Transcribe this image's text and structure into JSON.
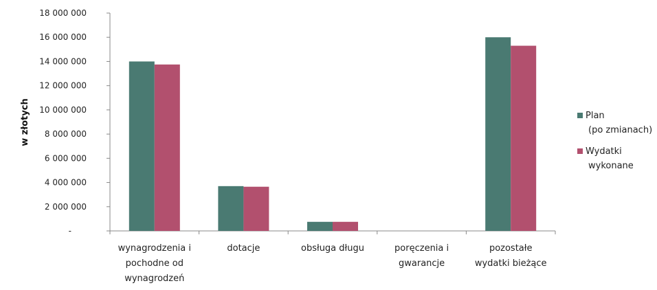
{
  "chart_data": {
    "type": "bar",
    "title": "",
    "xlabel": "",
    "ylabel": "w złotych",
    "ylim": [
      0,
      18000000
    ],
    "y_ticks": [
      {
        "value": 0,
        "label": "-"
      },
      {
        "value": 2000000,
        "label": "2 000 000"
      },
      {
        "value": 4000000,
        "label": "4 000 000"
      },
      {
        "value": 6000000,
        "label": "6 000 000"
      },
      {
        "value": 8000000,
        "label": "8 000 000"
      },
      {
        "value": 10000000,
        "label": "10 000 000"
      },
      {
        "value": 12000000,
        "label": "12 000 000"
      },
      {
        "value": 14000000,
        "label": "14 000 000"
      },
      {
        "value": 16000000,
        "label": "16 000 000"
      },
      {
        "value": 18000000,
        "label": "18 000 000"
      }
    ],
    "categories": [
      [
        "wynagrodzenia i",
        "pochodne od",
        "wynagrodzeń"
      ],
      [
        "dotacje"
      ],
      [
        "obsługa długu"
      ],
      [
        "poręczenia i",
        "gwarancje"
      ],
      [
        "pozostałe",
        "wydatki bieżące"
      ]
    ],
    "series": [
      {
        "name": [
          "Plan",
          "(po zmianach)"
        ],
        "color": "#4a7a72",
        "values": [
          14000000,
          3700000,
          750000,
          0,
          16000000
        ]
      },
      {
        "name": [
          "Wydatki",
          "wykonane"
        ],
        "color": "#b2506e",
        "values": [
          13750000,
          3650000,
          750000,
          0,
          15300000
        ]
      }
    ],
    "grid": false,
    "legend": "right"
  }
}
